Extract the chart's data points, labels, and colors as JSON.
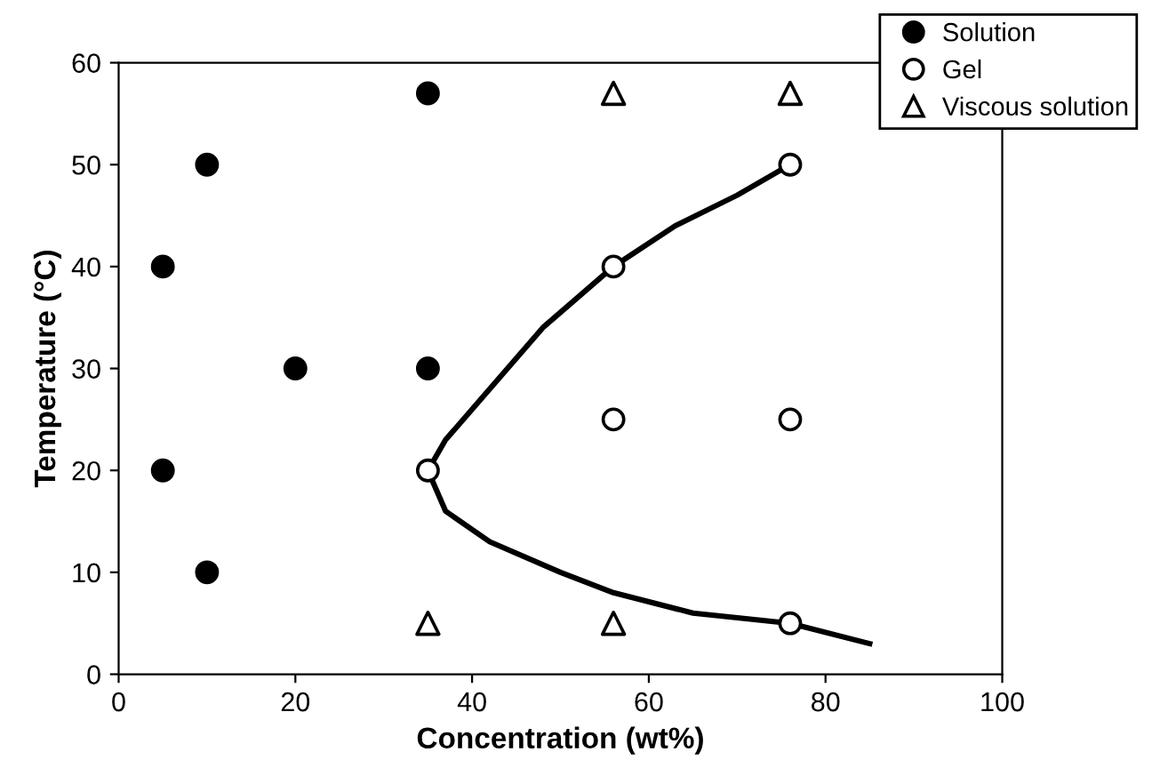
{
  "chart_data": {
    "type": "scatter",
    "xlabel": "Concentration (wt%)",
    "ylabel": "Temperature (°C)",
    "xlim": [
      0,
      100
    ],
    "xticks": [
      0,
      20,
      40,
      60,
      80,
      100
    ],
    "ylim": [
      0,
      60
    ],
    "yticks": [
      0,
      10,
      20,
      30,
      40,
      50,
      60
    ],
    "grid": false,
    "legend": "top right",
    "series": [
      {
        "name": "Solution",
        "color": "#000000",
        "marker": "circle",
        "x": [
          5,
          10,
          5,
          10,
          20,
          35,
          35
        ],
        "values": [
          40,
          50,
          20,
          10,
          30,
          57,
          30
        ]
      },
      {
        "name": "Gel",
        "color": "#ffffff",
        "marker": "circle",
        "x": [
          35,
          56,
          76,
          56,
          76,
          76
        ],
        "values": [
          20,
          40,
          50,
          25,
          25,
          5
        ]
      },
      {
        "name": "Viscous solution",
        "color": "#ffffff",
        "marker": "triangle",
        "x": [
          56,
          76,
          35,
          56
        ],
        "values": [
          57,
          57,
          5,
          5
        ]
      },
      {
        "type": "line",
        "color": "#000000",
        "marker": "none",
        "x": [
          76,
          70,
          63,
          56,
          48,
          41,
          37,
          35,
          37,
          42,
          50,
          56,
          65,
          76,
          85
        ],
        "values": [
          50,
          47,
          44,
          40,
          34,
          27,
          23,
          20,
          16,
          13,
          10,
          8,
          6,
          5,
          3
        ]
      }
    ]
  }
}
